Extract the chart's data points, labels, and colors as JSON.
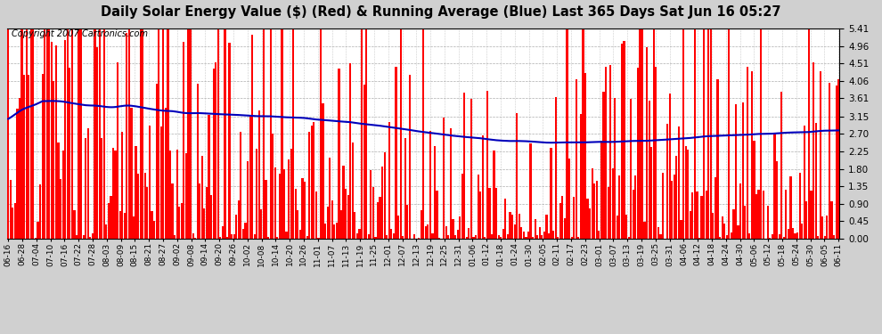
{
  "title": "Daily Solar Energy Value ($) (Red) & Running Average (Blue) Last 365 Days Sat Jun 16 05:27",
  "copyright": "Copyright 2007 Cartronics.com",
  "bar_color": "#FF0000",
  "line_color": "#0000BB",
  "background_color": "#D0D0D0",
  "plot_bg_color": "#FFFFFF",
  "ylim": [
    0.0,
    5.41
  ],
  "yticks": [
    0.0,
    0.45,
    0.9,
    1.35,
    1.8,
    2.25,
    2.7,
    3.15,
    3.61,
    4.06,
    4.51,
    4.96,
    5.41
  ],
  "title_fontsize": 10.5,
  "copyright_fontsize": 7,
  "n_days": 365,
  "x_tick_labels": [
    "06-16",
    "06-28",
    "07-04",
    "07-10",
    "07-16",
    "07-22",
    "07-28",
    "08-03",
    "08-09",
    "08-15",
    "08-21",
    "08-27",
    "09-02",
    "09-08",
    "09-14",
    "09-20",
    "09-26",
    "10-02",
    "10-08",
    "10-14",
    "10-20",
    "10-26",
    "11-01",
    "11-07",
    "11-13",
    "11-19",
    "11-25",
    "12-01",
    "12-07",
    "12-13",
    "12-19",
    "12-25",
    "12-31",
    "01-06",
    "01-12",
    "01-18",
    "01-24",
    "01-30",
    "02-05",
    "02-11",
    "02-17",
    "02-23",
    "03-01",
    "03-07",
    "03-13",
    "03-19",
    "03-25",
    "03-31",
    "04-06",
    "04-12",
    "04-18",
    "04-24",
    "04-30",
    "05-06",
    "05-12",
    "05-18",
    "05-24",
    "05-30",
    "06-05",
    "06-11"
  ],
  "avg_curve_x": [
    0,
    15,
    30,
    50,
    70,
    90,
    110,
    130,
    150,
    170,
    195,
    220,
    240,
    260,
    280,
    300,
    320,
    340,
    364
  ],
  "avg_curve_y": [
    3.15,
    3.55,
    3.5,
    3.4,
    3.3,
    3.2,
    3.15,
    3.1,
    3.0,
    2.85,
    2.65,
    2.52,
    2.48,
    2.48,
    2.52,
    2.6,
    2.68,
    2.72,
    2.8
  ]
}
